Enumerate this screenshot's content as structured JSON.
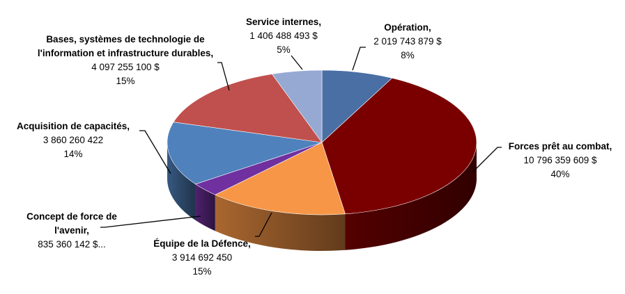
{
  "chart_data": {
    "type": "pie",
    "title": "",
    "slices": [
      {
        "label_lines": [
          "Opération,"
        ],
        "amount": "2 019 743 879 $",
        "percent_label": "8%",
        "value": 2019743879,
        "color": "#4A6FA5"
      },
      {
        "label_lines": [
          "Forces prêt au combat,"
        ],
        "amount": "10 796 359 609 $",
        "percent_label": "40%",
        "value": 10796359609,
        "color": "#7A0000"
      },
      {
        "label_lines": [
          "Équipe de la Défence,"
        ],
        "amount": "3 914 692 450",
        "percent_label": "15%",
        "value": 3914692450,
        "color": "#F79646"
      },
      {
        "label_lines": [
          "Concept de force de",
          "l'avenir,"
        ],
        "amount": "835 360 142 $...",
        "percent_label": "",
        "value": 835360142,
        "color": "#7030A0"
      },
      {
        "label_lines": [
          "Acquisition de capacités,"
        ],
        "amount": "3 860 260 422",
        "percent_label": "14%",
        "value": 3860260422,
        "color": "#4F81BD"
      },
      {
        "label_lines": [
          "Bases, systèmes de technologie de",
          "l'information et infrastructure durables,"
        ],
        "amount": "4 097 255 100 $",
        "percent_label": "15%",
        "value": 4097255100,
        "color": "#C0504D"
      },
      {
        "label_lines": [
          "Service internes,"
        ],
        "amount": "1  406 488 493 $",
        "percent_label": "5%",
        "value": 1406488493,
        "color": "#95A9D3"
      }
    ]
  }
}
